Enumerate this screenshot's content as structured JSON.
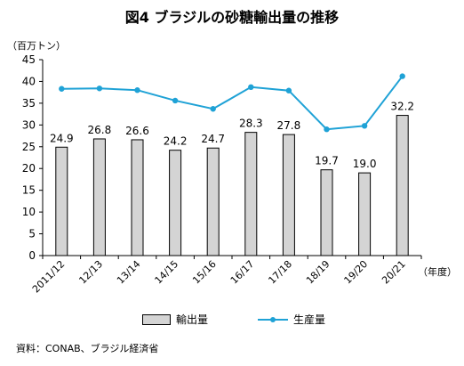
{
  "header": {
    "title": "図4  ブラジルの砂糖輸出量の推移",
    "unit": "（百万トン）",
    "x_unit": "（年度）",
    "source": "資料：CONAB、ブラジル経済省"
  },
  "colors": {
    "bar_fill": "#d4d4d4",
    "bar_stroke": "#000000",
    "line": "#1fa2d6",
    "axis": "#000000"
  },
  "chart_data": {
    "type": "bar",
    "title": "図4  ブラジルの砂糖輸出量の推移",
    "ylabel": "（百万トン）",
    "xlabel": "（年度）",
    "ylim": [
      0,
      45
    ],
    "yticks": [
      0,
      5,
      10,
      15,
      20,
      25,
      30,
      35,
      40,
      45
    ],
    "grid": false,
    "legend_position": "bottom",
    "categories": [
      "2011/12",
      "12/13",
      "13/14",
      "14/15",
      "15/16",
      "16/17",
      "17/18",
      "18/19",
      "19/20",
      "20/21"
    ],
    "series": [
      {
        "name": "輸出量",
        "type": "bar",
        "values": [
          24.9,
          26.8,
          26.6,
          24.2,
          24.7,
          28.3,
          27.8,
          19.7,
          19.0,
          32.2
        ],
        "labels": [
          "24.9",
          "26.8",
          "26.6",
          "24.2",
          "24.7",
          "28.3",
          "27.8",
          "19.7",
          "19.0",
          "32.2"
        ]
      },
      {
        "name": "生産量",
        "type": "line",
        "values": [
          38.3,
          38.4,
          38.0,
          35.6,
          33.7,
          38.7,
          37.9,
          29.0,
          29.8,
          41.2
        ]
      }
    ]
  }
}
